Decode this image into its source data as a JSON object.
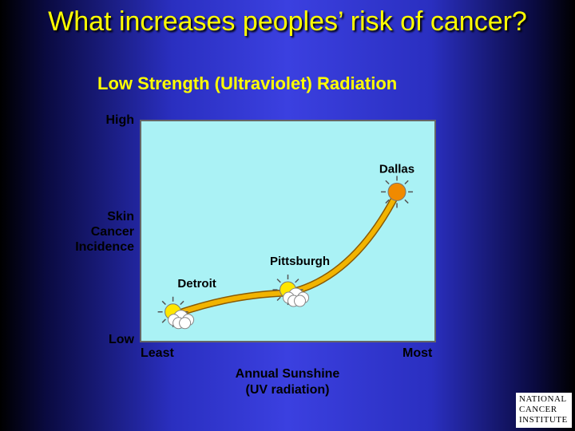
{
  "title": "What increases peoples’ risk of cancer?",
  "subtitle": "Low Strength (Ultraviolet) Radiation",
  "colors": {
    "title": "#ffff00",
    "plot_bg": "#aaf2f5",
    "curve": "#f2b400",
    "sun": "#ffe600",
    "dallas_sun": "#f08a00"
  },
  "logo_text": [
    "NATIONAL",
    "CANCER",
    "INSTITUTE"
  ],
  "chart_data": {
    "type": "line",
    "xlabel": "Annual Sunshine (UV radiation)",
    "xlabel_lines": [
      "Annual Sunshine",
      "(UV radiation)"
    ],
    "ylabel": "Skin Cancer Incidence",
    "ylabel_lines": [
      "Skin",
      "Cancer",
      "Incidence"
    ],
    "x_tick_labels": [
      "Least",
      "Most"
    ],
    "y_tick_labels": [
      "Low",
      "High"
    ],
    "xlim": [
      0,
      1
    ],
    "ylim": [
      0,
      1
    ],
    "grid": false,
    "points": [
      {
        "label": "Detroit",
        "x": 0.11,
        "y": 0.12,
        "icon": "sun-cloud-icon"
      },
      {
        "label": "Pittsburgh",
        "x": 0.5,
        "y": 0.22,
        "icon": "sun-cloud-icon"
      },
      {
        "label": "Dallas",
        "x": 0.87,
        "y": 0.67,
        "icon": "sun-icon"
      }
    ]
  }
}
